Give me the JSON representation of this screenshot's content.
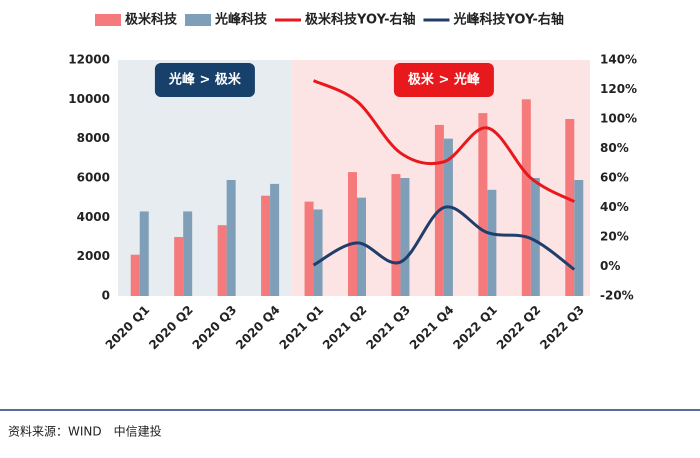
{
  "chart_data": {
    "type": "bar-line",
    "categories": [
      "2020 Q1",
      "2020 Q2",
      "2020 Q3",
      "2020 Q4",
      "2021 Q1",
      "2021 Q2",
      "2021 Q3",
      "2021 Q4",
      "2022 Q1",
      "2022 Q2",
      "2022 Q3"
    ],
    "series": [
      {
        "name": "极米科技",
        "type": "bar",
        "color": "#f47a7c",
        "values": [
          2100,
          3000,
          3600,
          5100,
          4800,
          6300,
          6200,
          8700,
          9300,
          10000,
          9000
        ]
      },
      {
        "name": "光峰科技",
        "type": "bar",
        "color": "#7f9fb9",
        "values": [
          4300,
          4300,
          5900,
          5700,
          4400,
          5000,
          6000,
          8000,
          5400,
          6000,
          5900
        ]
      },
      {
        "name": "极米科技YOY-右轴",
        "type": "line",
        "axis": "y2",
        "color": "#e8191c",
        "values": [
          null,
          null,
          null,
          null,
          126,
          112,
          77,
          71,
          94,
          60,
          44
        ]
      },
      {
        "name": "光峰科技YOY-右轴",
        "type": "line",
        "axis": "y2",
        "color": "#1f3e6b",
        "values": [
          null,
          null,
          null,
          null,
          1,
          16,
          3,
          40,
          23,
          19,
          -2
        ]
      }
    ],
    "ylim": [
      0,
      12000
    ],
    "yticks": [
      0,
      2000,
      4000,
      6000,
      8000,
      10000,
      12000
    ],
    "y2lim": [
      -20,
      140
    ],
    "y2ticks": [
      {
        "value": -20,
        "label": "-20%"
      },
      {
        "value": 0,
        "label": "0%"
      },
      {
        "value": 20,
        "label": "20%"
      },
      {
        "value": 40,
        "label": "40%"
      },
      {
        "value": 60,
        "label": "60%"
      },
      {
        "value": 80,
        "label": "80%"
      },
      {
        "value": 100,
        "label": "100%"
      },
      {
        "value": 120,
        "label": "120%"
      },
      {
        "value": 140,
        "label": "140%"
      }
    ],
    "annotations": [
      {
        "text": "光峰 > 极米",
        "color": "#17406b"
      },
      {
        "text": "极米 > 光峰",
        "color": "#e8191c"
      }
    ],
    "legend": "top",
    "source": "资料来源：WIND　中信建投"
  }
}
